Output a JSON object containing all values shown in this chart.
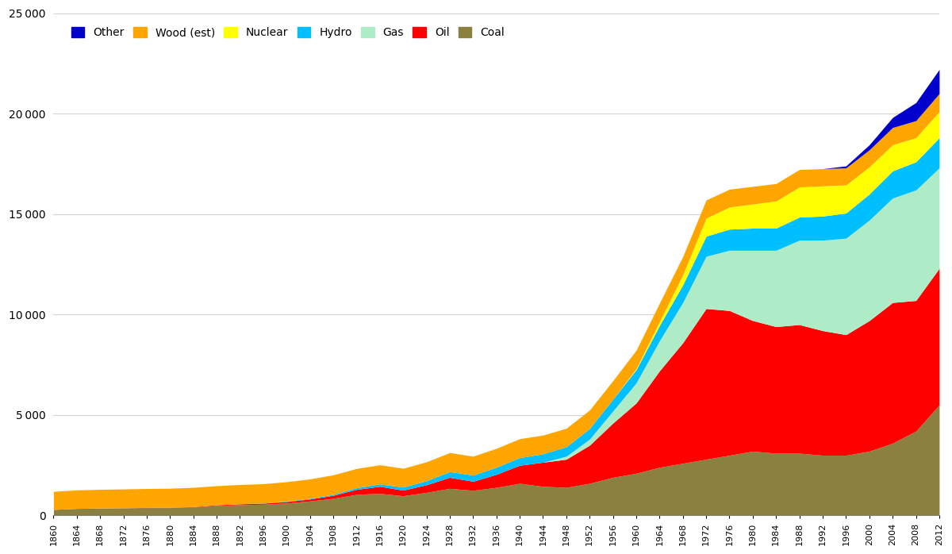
{
  "years": [
    1860,
    1864,
    1868,
    1872,
    1876,
    1880,
    1884,
    1888,
    1892,
    1896,
    1900,
    1904,
    1908,
    1912,
    1916,
    1920,
    1924,
    1928,
    1932,
    1936,
    1940,
    1944,
    1948,
    1952,
    1956,
    1960,
    1964,
    1968,
    1972,
    1976,
    1980,
    1984,
    1988,
    1992,
    1996,
    2000,
    2004,
    2008,
    2012
  ],
  "coal": [
    300,
    350,
    370,
    380,
    390,
    390,
    420,
    500,
    540,
    560,
    620,
    720,
    850,
    1050,
    1100,
    980,
    1150,
    1350,
    1250,
    1400,
    1600,
    1450,
    1400,
    1600,
    1900,
    2100,
    2400,
    2600,
    2800,
    3000,
    3200,
    3100,
    3100,
    3000,
    3000,
    3200,
    3600,
    4200,
    5500
  ],
  "oil": [
    0,
    0,
    0,
    0,
    10,
    15,
    20,
    30,
    40,
    50,
    70,
    100,
    150,
    250,
    350,
    280,
    380,
    550,
    450,
    650,
    900,
    1200,
    1400,
    1900,
    2700,
    3500,
    4800,
    6000,
    7500,
    7200,
    6500,
    6300,
    6400,
    6200,
    6000,
    6500,
    7000,
    6500,
    6800
  ],
  "gas": [
    0,
    0,
    0,
    0,
    0,
    0,
    0,
    0,
    0,
    0,
    0,
    0,
    0,
    0,
    0,
    0,
    0,
    0,
    0,
    0,
    0,
    0,
    150,
    300,
    600,
    1000,
    1500,
    2000,
    2600,
    3000,
    3500,
    3800,
    4200,
    4500,
    4800,
    5000,
    5200,
    5500,
    5000
  ],
  "hydro": [
    0,
    0,
    0,
    0,
    0,
    0,
    0,
    0,
    0,
    10,
    20,
    30,
    50,
    80,
    120,
    150,
    200,
    280,
    310,
    350,
    380,
    420,
    470,
    530,
    590,
    660,
    760,
    880,
    1000,
    1050,
    1100,
    1100,
    1150,
    1200,
    1250,
    1300,
    1350,
    1400,
    1500
  ],
  "nuclear": [
    0,
    0,
    0,
    0,
    0,
    0,
    0,
    0,
    0,
    0,
    0,
    0,
    0,
    0,
    0,
    0,
    0,
    0,
    0,
    0,
    0,
    0,
    0,
    0,
    0,
    50,
    200,
    500,
    900,
    1100,
    1200,
    1350,
    1500,
    1500,
    1400,
    1350,
    1300,
    1200,
    1300
  ],
  "wood": [
    900,
    920,
    930,
    940,
    940,
    950,
    960,
    950,
    960,
    960,
    970,
    970,
    970,
    960,
    950,
    940,
    940,
    950,
    940,
    940,
    940,
    930,
    920,
    920,
    920,
    920,
    910,
    910,
    900,
    890,
    880,
    870,
    870,
    860,
    850,
    850,
    860,
    850,
    900
  ],
  "other": [
    0,
    0,
    0,
    0,
    0,
    0,
    0,
    0,
    0,
    0,
    0,
    0,
    0,
    0,
    0,
    0,
    0,
    0,
    0,
    0,
    0,
    0,
    0,
    0,
    0,
    0,
    0,
    0,
    0,
    0,
    0,
    0,
    0,
    0,
    100,
    250,
    500,
    900,
    1200
  ],
  "colors": {
    "coal": "#8B8040",
    "oil": "#FF0000",
    "gas": "#AEECC8",
    "hydro": "#00BFFF",
    "nuclear": "#FFFF00",
    "wood": "#FFA500",
    "other": "#0000CC"
  },
  "ylim": [
    0,
    25000
  ],
  "yticks": [
    0,
    5000,
    10000,
    15000,
    20000,
    25000
  ],
  "legend_order": [
    "other",
    "wood",
    "nuclear",
    "hydro",
    "gas",
    "oil",
    "coal"
  ],
  "legend_labels": {
    "other": "Other",
    "wood": "Wood (est)",
    "nuclear": "Nuclear",
    "hydro": "Hydro",
    "gas": "Gas",
    "oil": "Oil",
    "coal": "Coal"
  }
}
